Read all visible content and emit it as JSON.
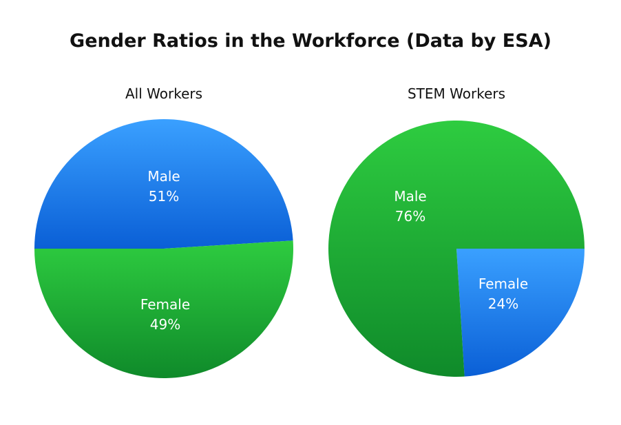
{
  "title": "Gender Ratios in the Workforce (Data by ESA)",
  "colors": {
    "male_light": "#2ecc40",
    "male_dark": "#0f8a2a",
    "female_light": "#3aa0ff",
    "female_dark": "#0a5fd6"
  },
  "chart_data": [
    {
      "type": "pie",
      "title": "All Workers",
      "slices": [
        {
          "label": "Male",
          "value": 51,
          "value_label": "51%",
          "color": "green"
        },
        {
          "label": "Female",
          "value": 49,
          "value_label": "49%",
          "color": "blue"
        }
      ]
    },
    {
      "type": "pie",
      "title": "STEM Workers",
      "slices": [
        {
          "label": "Male",
          "value": 76,
          "value_label": "76%",
          "color": "green"
        },
        {
          "label": "Female",
          "value": 24,
          "value_label": "24%",
          "color": "blue"
        }
      ]
    }
  ]
}
